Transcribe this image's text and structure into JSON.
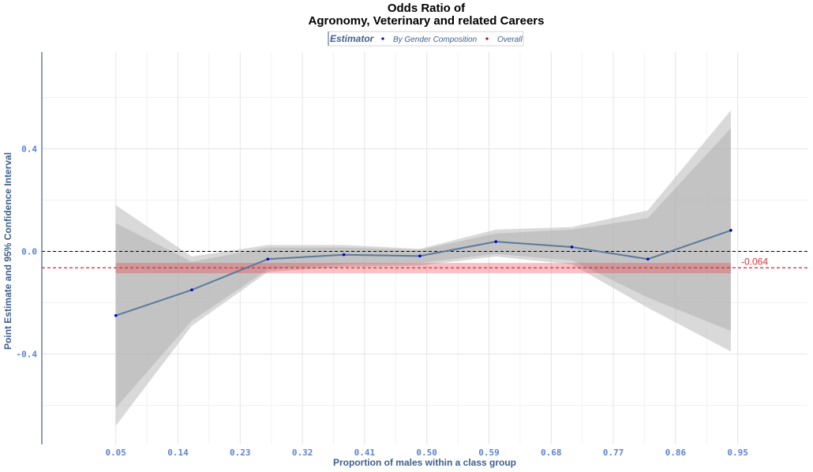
{
  "chart_data": {
    "type": "line",
    "title": "Odds Ratio of",
    "subtitle": "Agronomy, Veterinary and related Careers",
    "xlabel": "Proportion of males within a class group",
    "ylabel": "Point Estimate and 95% Confidence Interval",
    "x_ticks": [
      "0.05",
      "0.14",
      "0.23",
      "0.32",
      "0.41",
      "0.50",
      "0.59",
      "0.68",
      "0.77",
      "0.86",
      "0.95"
    ],
    "y_ticks": [
      "-0.4",
      "0.0",
      "0.4"
    ],
    "xlim": [
      0.0,
      1.0
    ],
    "ylim": [
      -0.75,
      0.77
    ],
    "grid": true,
    "legend": {
      "title": "Estimator",
      "position": "top",
      "entries": [
        "By Gender Composition",
        "Overall"
      ]
    },
    "series": [
      {
        "name": "By Gender Composition",
        "color": "#5a7a9a",
        "point_color": "#0000cd",
        "x": [
          0.05,
          0.16,
          0.27,
          0.38,
          0.49,
          0.6,
          0.71,
          0.82,
          0.94
        ],
        "y": [
          -0.25,
          -0.15,
          -0.03,
          -0.013,
          -0.018,
          0.038,
          0.017,
          -0.03,
          0.082
        ],
        "ci95_lower": [
          -0.68,
          -0.29,
          -0.08,
          -0.06,
          -0.055,
          -0.02,
          -0.05,
          -0.22,
          -0.39
        ],
        "ci95_upper": [
          0.18,
          -0.02,
          0.025,
          0.025,
          0.01,
          0.085,
          0.095,
          0.16,
          0.55
        ],
        "ci90_lower": [
          -0.61,
          -0.27,
          -0.07,
          -0.05,
          -0.045,
          -0.01,
          -0.035,
          -0.18,
          -0.31
        ],
        "ci90_upper": [
          0.11,
          -0.04,
          0.015,
          0.015,
          0.005,
          0.07,
          0.085,
          0.13,
          0.48
        ]
      }
    ],
    "overall": {
      "name": "Overall",
      "value": -0.064,
      "label": "-0.064",
      "ci_lower": -0.085,
      "ci_upper": -0.045,
      "color": "#e8313a",
      "point_color": "#cc0000"
    },
    "zero_line": 0.0
  }
}
